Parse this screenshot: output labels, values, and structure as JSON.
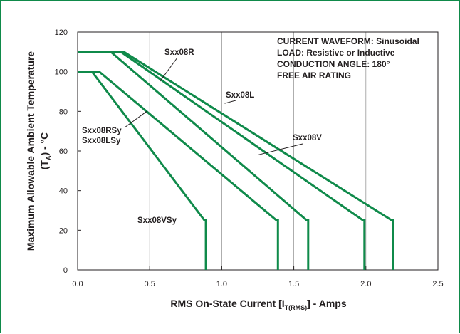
{
  "chart_data": {
    "type": "line",
    "title": "",
    "xlabel": "RMS On-State Current [I",
    "xlabel_subscript": "T(RMS)",
    "xlabel_suffix": "] - Amps",
    "ylabel": "Maximum Allowable Ambient Temperature",
    "ylabel_line2_prefix": "(T",
    "ylabel_line2_subscript": "A",
    "ylabel_line2_suffix": ") - °C",
    "xlim": [
      0,
      2.5
    ],
    "ylim": [
      0,
      120
    ],
    "x_ticks": [
      0,
      0.5,
      1.0,
      1.5,
      2.0,
      2.5
    ],
    "x_tick_labels": [
      "0.0",
      "0.5",
      "1.0",
      "1.5",
      "2.0",
      "2.5"
    ],
    "y_ticks": [
      0,
      20,
      40,
      60,
      80,
      100,
      120
    ],
    "y_tick_labels": [
      "0",
      "20",
      "40",
      "60",
      "80",
      "100",
      "120"
    ],
    "grid": "vertical",
    "line_color": "#0f8a4a",
    "axis_color": "#231f20",
    "grid_color": "#9a9a9a",
    "conditions": [
      "CURRENT WAVEFORM: Sinusoidal",
      "LOAD: Resistive or Inductive",
      "CONDUCTION ANGLE: 180°",
      "FREE AIR RATING"
    ],
    "series": [
      {
        "name": "Sxx08VSy",
        "points": [
          [
            0,
            100
          ],
          [
            0.1,
            100
          ],
          [
            0.88,
            25
          ],
          [
            0.89,
            25
          ],
          [
            0.89,
            0
          ]
        ]
      },
      {
        "name": "Sxx08RSy / Sxx08LSy",
        "points": [
          [
            0,
            100
          ],
          [
            0.15,
            100
          ],
          [
            1.38,
            25
          ],
          [
            1.39,
            25
          ],
          [
            1.39,
            0
          ]
        ]
      },
      {
        "name": "Sxx08V",
        "points": [
          [
            0,
            110
          ],
          [
            0.23,
            110
          ],
          [
            1.59,
            25
          ],
          [
            1.6,
            25
          ],
          [
            1.6,
            0
          ]
        ]
      },
      {
        "name": "Sxx08L",
        "points": [
          [
            0,
            110
          ],
          [
            0.3,
            110
          ],
          [
            1.98,
            25
          ],
          [
            1.99,
            25
          ],
          [
            1.99,
            0
          ]
        ]
      },
      {
        "name": "Sxx08R",
        "points": [
          [
            0,
            110
          ],
          [
            0.32,
            110
          ],
          [
            2.18,
            25
          ],
          [
            2.19,
            25
          ],
          [
            2.19,
            0
          ]
        ]
      }
    ],
    "annotations": [
      {
        "text": "Sxx08R",
        "target": [
          0.57,
          95
        ]
      },
      {
        "text": "Sxx08L",
        "target": [
          1.02,
          84
        ]
      },
      {
        "text": "Sxx08V",
        "target": [
          1.25,
          58
        ]
      },
      {
        "text": "Sxx08RSy",
        "target": [
          0.48,
          80
        ]
      },
      {
        "text": "Sxx08LSy",
        "target": null
      },
      {
        "text": "Sxx08VSy",
        "target": null
      }
    ]
  }
}
